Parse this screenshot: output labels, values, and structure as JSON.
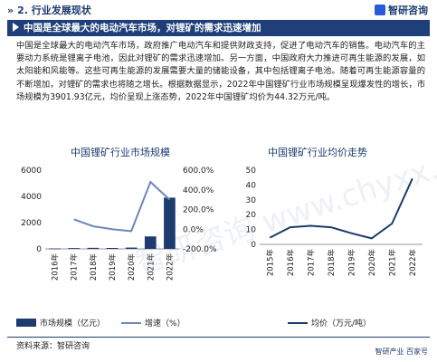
{
  "header": {
    "section_title": "2. 行业发展现状",
    "section_chevron": "»",
    "brand_name": "智研咨询"
  },
  "banner": {
    "title": "中国是全球最大的电动汽车市场，对锂矿的需求迅速增加"
  },
  "body_text": "中国是全球最大的电动汽车市场，政府推广电动汽车和提供财政支持，促进了电动汽车的销售。电动汽车的主要动力系统是锂离子电池，因此对锂矿的需求迅速增加。另一方面，中国政府大力推进可再生能源的发展，如太阳能和风能等。这些可再生能源的发展需要大量的储能设备，其中包括锂离子电池。随着可再生能源容量的不断增加，对锂矿的需求也将随之增长。根据数据显示，2022年中国锂矿行业市场规模呈现爆发性的增长，市场规模为3901.93亿元，均价呈现上涨态势，2022年中国锂矿均价为44.32万元/吨。",
  "watermark": "智研咨询 www.chyxx.com",
  "chart_data": [
    {
      "type": "bar",
      "title": "中国锂矿行业市场规模",
      "categories": [
        "2016年",
        "2017年",
        "2018年",
        "2019年",
        "2020年",
        "2021年",
        "2022年"
      ],
      "series": [
        {
          "name": "市场规模（亿元）",
          "axis": "left",
          "type": "bar",
          "values": [
            30,
            60,
            80,
            70,
            100,
            950,
            3901.93
          ]
        },
        {
          "name": "增速（%）",
          "axis": "right",
          "type": "line",
          "values": [
            null,
            100,
            30,
            0,
            -20,
            480,
            300
          ]
        }
      ],
      "y_left": {
        "ticks": [
          "6000",
          "4000",
          "2000",
          "0"
        ],
        "lim": [
          0,
          6000
        ]
      },
      "y_right": {
        "ticks": [
          "600.0%",
          "400.0%",
          "200.0%",
          "0.0%",
          "-200.0%"
        ],
        "lim": [
          -200,
          600
        ]
      },
      "colors": {
        "bar": "#1d3b6e",
        "line": "#6f87b8"
      },
      "legend_position": "bottom"
    },
    {
      "type": "line",
      "title": "中国锂矿行业均价走势",
      "categories": [
        "2015年",
        "2016年",
        "2017年",
        "2018年",
        "2019年",
        "2020年",
        "2021年",
        "2022年"
      ],
      "series": [
        {
          "name": "均价（万元/吨）",
          "values": [
            4.5,
            11.5,
            12.5,
            11.5,
            7.5,
            4.0,
            14.0,
            44.32
          ]
        }
      ],
      "y": {
        "ticks": [
          "50",
          "40",
          "30",
          "20",
          "10",
          "0"
        ],
        "lim": [
          0,
          50
        ]
      },
      "colors": {
        "line": "#1d3b6e"
      },
      "legend_position": "bottom"
    }
  ],
  "footer": {
    "source": "资料来源：智研咨询",
    "brand": "智研产业  百家号"
  }
}
